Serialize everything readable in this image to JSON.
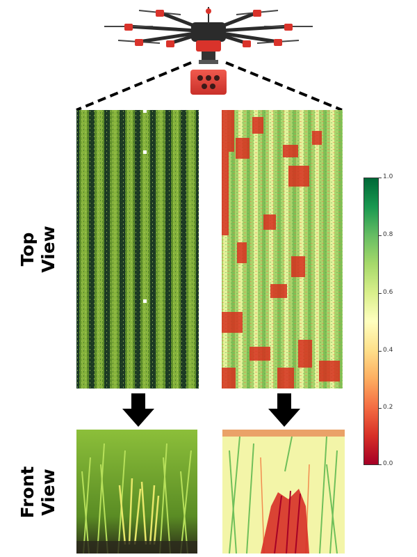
{
  "labels": {
    "top_view_line1": "Top",
    "top_view_line2": "View",
    "front_view_line1": "Front",
    "front_view_line2": "View"
  },
  "colorbar": {
    "ticks": [
      "1.0",
      "0.8",
      "0.6",
      "0.4",
      "0.2",
      "0.0"
    ],
    "colors": [
      "#006837",
      "#1a9850",
      "#66bd63",
      "#a6d96a",
      "#d9ef8b",
      "#ffffbf",
      "#fee08b",
      "#fdae61",
      "#f46d43",
      "#d73027",
      "#a50026"
    ]
  },
  "colors": {
    "drone_body": "#2b2b2b",
    "drone_accent": "#d9332b",
    "camera": "#e8473d",
    "field_dark": "#1e3a22",
    "field_green": "#6f9a2e",
    "ndvi_green": "#8cc35a",
    "ndvi_red": "#d7301f"
  },
  "icons": {
    "drone": "drone-icon",
    "camera": "multispectral-camera-icon",
    "arrow": "down-arrow-icon"
  }
}
